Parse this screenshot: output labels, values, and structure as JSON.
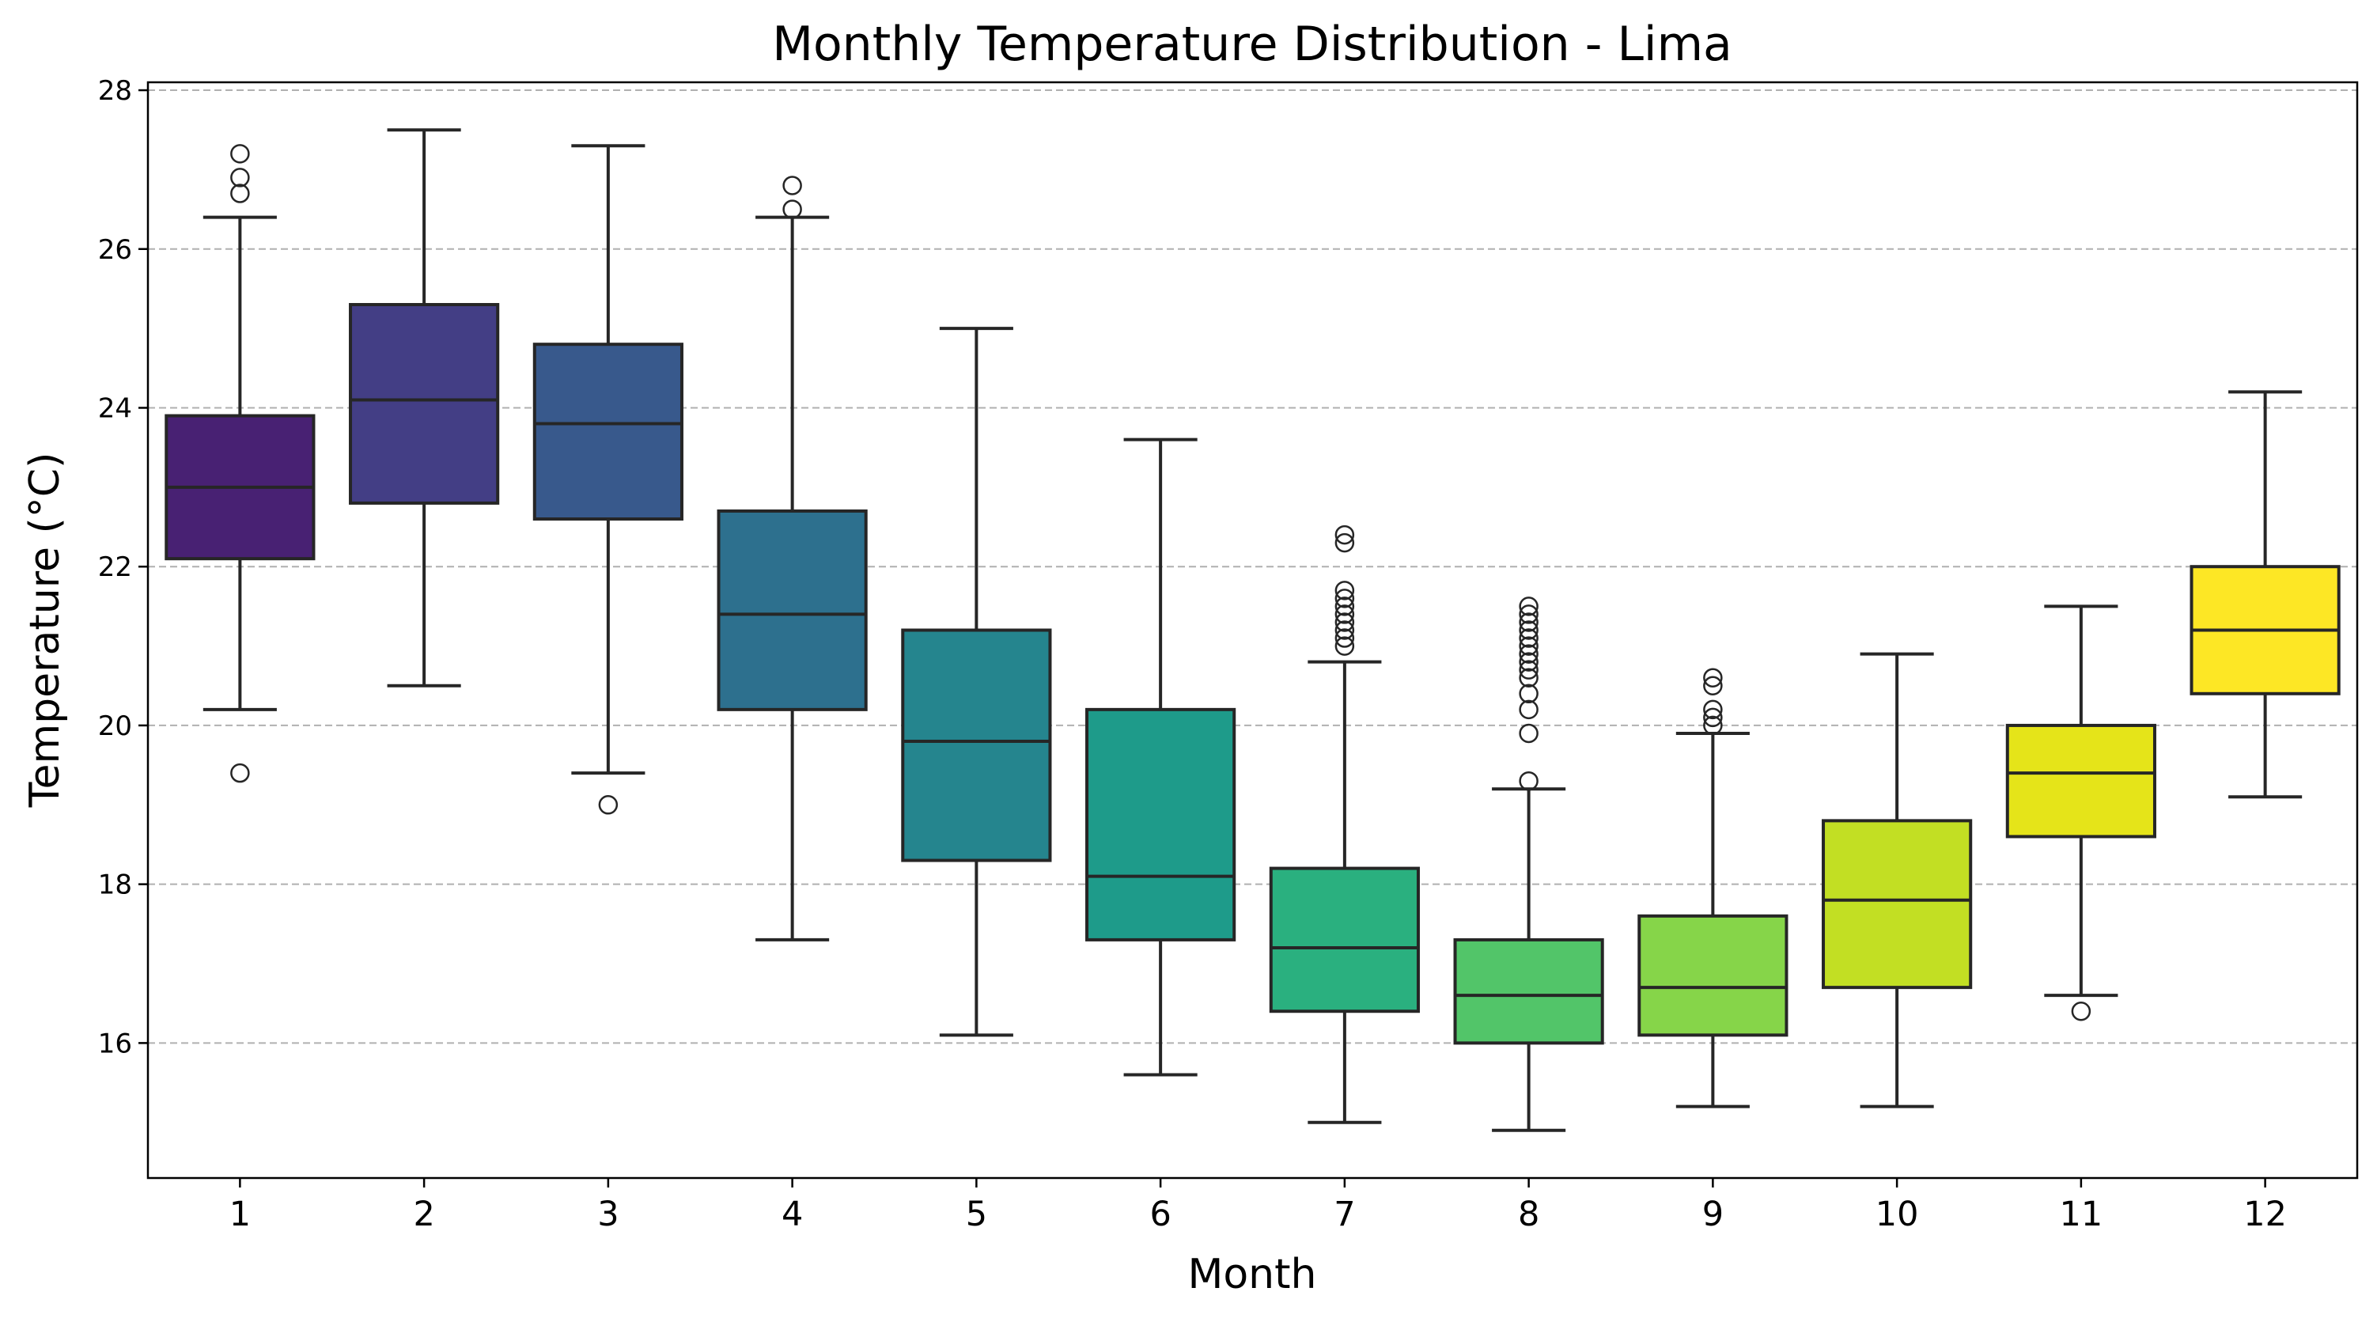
{
  "chart_data": {
    "type": "box",
    "title": "Monthly Temperature Distribution - Lima",
    "xlabel": "Month",
    "ylabel": "Temperature (°C)",
    "ylim": [
      14.3,
      28.1
    ],
    "yticks": [
      16,
      18,
      20,
      22,
      24,
      26,
      28
    ],
    "ytick_labels": [
      "16",
      "18",
      "20",
      "22",
      "24",
      "26",
      "28"
    ],
    "grid": "y-dashed",
    "categories": [
      "1",
      "2",
      "3",
      "4",
      "5",
      "6",
      "7",
      "8",
      "9",
      "10",
      "11",
      "12"
    ],
    "boxes": [
      {
        "month": "1",
        "whisker_low": 20.2,
        "q1": 22.1,
        "median": 23.0,
        "q3": 23.9,
        "whisker_high": 26.4,
        "outliers": [
          19.4,
          26.7,
          26.9,
          27.2
        ],
        "color": "#482173"
      },
      {
        "month": "2",
        "whisker_low": 20.5,
        "q1": 22.8,
        "median": 24.1,
        "q3": 25.3,
        "whisker_high": 27.5,
        "outliers": [],
        "color": "#433e85"
      },
      {
        "month": "3",
        "whisker_low": 19.4,
        "q1": 22.6,
        "median": 23.8,
        "q3": 24.8,
        "whisker_high": 27.3,
        "outliers": [
          19.0
        ],
        "color": "#38598c"
      },
      {
        "month": "4",
        "whisker_low": 17.3,
        "q1": 20.2,
        "median": 21.4,
        "q3": 22.7,
        "whisker_high": 26.4,
        "outliers": [
          26.5,
          26.8
        ],
        "color": "#2d708e"
      },
      {
        "month": "5",
        "whisker_low": 16.1,
        "q1": 18.3,
        "median": 19.8,
        "q3": 21.2,
        "whisker_high": 25.0,
        "outliers": [],
        "color": "#25858e"
      },
      {
        "month": "6",
        "whisker_low": 15.6,
        "q1": 17.3,
        "median": 18.1,
        "q3": 20.2,
        "whisker_high": 23.6,
        "outliers": [],
        "color": "#1e9b8a"
      },
      {
        "month": "7",
        "whisker_low": 15.0,
        "q1": 16.4,
        "median": 17.2,
        "q3": 18.2,
        "whisker_high": 20.8,
        "outliers": [
          21.0,
          21.1,
          21.2,
          21.3,
          21.4,
          21.5,
          21.6,
          21.7,
          22.3,
          22.4
        ],
        "color": "#2ab07f"
      },
      {
        "month": "8",
        "whisker_low": 14.9,
        "q1": 16.0,
        "median": 16.6,
        "q3": 17.3,
        "whisker_high": 19.2,
        "outliers": [
          19.3,
          19.9,
          20.2,
          20.4,
          20.6,
          20.7,
          20.8,
          20.9,
          21.0,
          21.1,
          21.2,
          21.3,
          21.4,
          21.5
        ],
        "color": "#52c569"
      },
      {
        "month": "9",
        "whisker_low": 15.2,
        "q1": 16.1,
        "median": 16.7,
        "q3": 17.6,
        "whisker_high": 19.9,
        "outliers": [
          20.0,
          20.1,
          20.2,
          20.5,
          20.6
        ],
        "color": "#86d549"
      },
      {
        "month": "10",
        "whisker_low": 15.2,
        "q1": 16.7,
        "median": 17.8,
        "q3": 18.8,
        "whisker_high": 20.9,
        "outliers": [],
        "color": "#c2df23"
      },
      {
        "month": "11",
        "whisker_low": 16.6,
        "q1": 18.6,
        "median": 19.4,
        "q3": 20.0,
        "whisker_high": 21.5,
        "outliers": [
          16.4
        ],
        "color": "#e5e419"
      },
      {
        "month": "12",
        "whisker_low": 19.1,
        "q1": 20.4,
        "median": 21.2,
        "q3": 22.0,
        "whisker_high": 24.2,
        "outliers": [],
        "color": "#fde725"
      }
    ]
  }
}
